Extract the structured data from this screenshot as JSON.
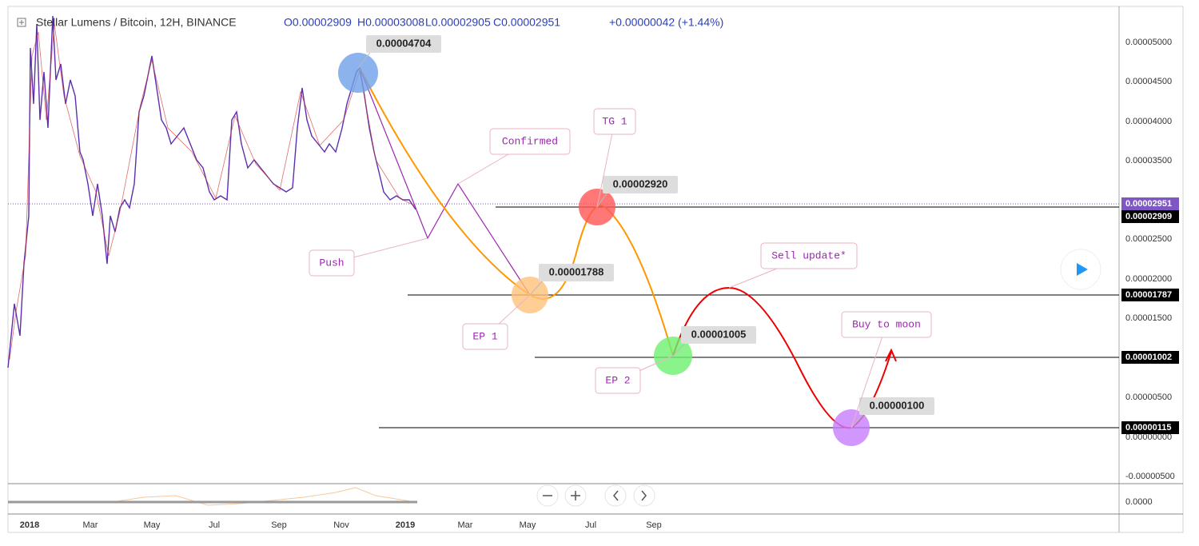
{
  "header": {
    "symbol": "Stellar Lumens / Bitcoin, 12H, BINANCE",
    "ohlc": [
      "O0.00002909",
      "H0.00003008",
      "L0.00002905",
      "C0.00002951",
      "+0.00000042 (+1.44%)"
    ]
  },
  "price_axis": [
    "0.00005000",
    "0.00004500",
    "0.00004000",
    "0.00003500",
    "0.00002500",
    "0.00002000",
    "0.00001500",
    "0.00000500",
    "0.00000000",
    "-0.00000500"
  ],
  "price_tags": [
    "0.00002951",
    "0.00002909",
    "0.00001787",
    "0.00001002",
    "0.00000115"
  ],
  "lower_axis": "0.0000",
  "time_axis": [
    "2018",
    "Mar",
    "May",
    "Jul",
    "Sep",
    "Nov",
    "2019",
    "Mar",
    "May",
    "Jul",
    "Sep"
  ],
  "levels": [
    "0.00004704",
    "0.00002920",
    "0.00001788",
    "0.00001005",
    "0.00000100"
  ],
  "notes": [
    "Confirmed",
    "TG 1",
    "Push",
    "EP 1",
    "EP 2",
    "Sell update*",
    "Buy to moon"
  ]
}
